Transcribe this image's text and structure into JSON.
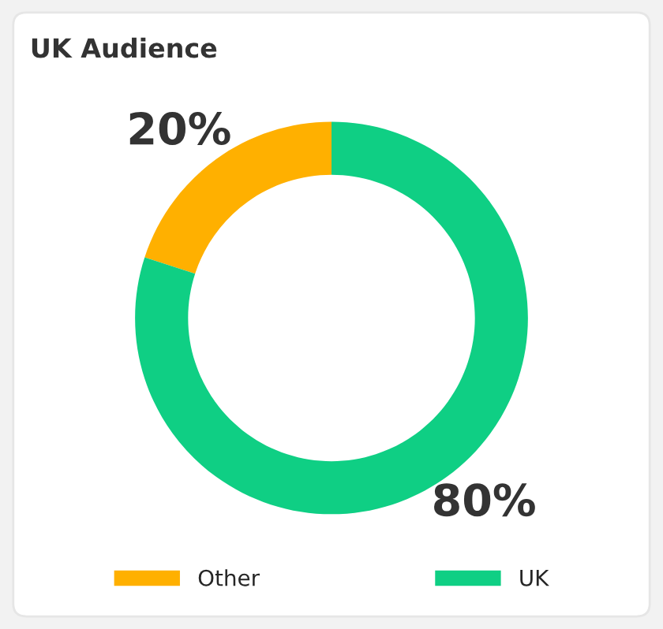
{
  "chart_data": {
    "type": "donut",
    "title": "UK Audience",
    "categories": [
      "Other",
      "UK"
    ],
    "values": [
      20,
      80
    ],
    "colors": [
      "#ffb000",
      "#0fcf84"
    ],
    "value_labels": [
      "20%",
      "80%"
    ],
    "legend": "bottom"
  }
}
